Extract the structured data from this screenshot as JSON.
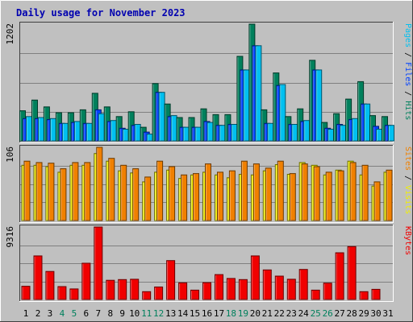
{
  "chart_data": {
    "type": "bar",
    "title": "Daily usage for November 2023",
    "categories": [
      "1",
      "2",
      "3",
      "4",
      "5",
      "6",
      "7",
      "8",
      "9",
      "10",
      "11",
      "12",
      "13",
      "14",
      "15",
      "16",
      "17",
      "18",
      "19",
      "20",
      "21",
      "22",
      "23",
      "24",
      "25",
      "26",
      "27",
      "28",
      "29",
      "30",
      "31"
    ],
    "weekend_days": [
      "4",
      "5",
      "11",
      "12",
      "18",
      "19",
      "25",
      "26"
    ],
    "panels": [
      {
        "id": "hits",
        "max_label": "1202",
        "ylim": [
          0,
          1202
        ],
        "axis_label_parts": [
          {
            "text": "Pages",
            "color": "#00c0f0"
          },
          {
            "text": " / ",
            "color": "#000000"
          },
          {
            "text": "Files",
            "color": "#0040ff"
          },
          {
            "text": " / ",
            "color": "#000000"
          },
          {
            "text": "Hits",
            "color": "#00805c"
          }
        ],
        "series": [
          {
            "name": "Hits",
            "color": "#00805c",
            "values": [
              310,
              420,
              350,
              290,
              290,
              320,
              490,
              350,
              250,
              300,
              140,
              590,
              380,
              240,
              240,
              330,
              270,
              270,
              870,
              1202,
              320,
              700,
              250,
              330,
              830,
              190,
              280,
              430,
              610,
              260,
              250
            ]
          },
          {
            "name": "Files",
            "color": "#0040ff",
            "values": [
              230,
              230,
              220,
              180,
              190,
              180,
              320,
              200,
              130,
              160,
              90,
              500,
              250,
              140,
              140,
              200,
              160,
              170,
              730,
              980,
              180,
              570,
              170,
              200,
              730,
              130,
              170,
              220,
              380,
              150,
              160
            ]
          },
          {
            "name": "Pages",
            "color": "#00c0f0",
            "values": [
              250,
              240,
              230,
              180,
              200,
              180,
              280,
              210,
              120,
              170,
              70,
              500,
              260,
              140,
              140,
              190,
              160,
              170,
              730,
              980,
              180,
              580,
              170,
              210,
              730,
              120,
              160,
              230,
              380,
              120,
              160
            ]
          }
        ]
      },
      {
        "id": "visits",
        "max_label": "106",
        "ylim": [
          0,
          106
        ],
        "axis_label_parts": [
          {
            "text": "Sites",
            "color": "#f08000"
          },
          {
            "text": " / ",
            "color": "#000000"
          },
          {
            "text": "Visits",
            "color": "#f0f000"
          }
        ],
        "series": [
          {
            "name": "Visits",
            "color": "#f0f000",
            "values": [
              80,
              80,
              78,
              70,
              80,
              80,
              97,
              86,
              72,
              69,
              56,
              70,
              73,
              61,
              66,
              70,
              66,
              62,
              67,
              66,
              72,
              81,
              67,
              84,
              80,
              66,
              73,
              86,
              66,
              50,
              70
            ]
          },
          {
            "name": "Sites",
            "color": "#f08000",
            "values": [
              86,
              84,
              83,
              75,
              84,
              84,
              106,
              90,
              80,
              75,
              63,
              86,
              78,
              66,
              68,
              82,
              70,
              72,
              86,
              82,
              76,
              86,
              68,
              82,
              78,
              70,
              72,
              84,
              80,
              56,
              73
            ]
          }
        ]
      },
      {
        "id": "kbytes",
        "max_label": "9316",
        "ylim": [
          0,
          9316
        ],
        "axis_label_parts": [
          {
            "text": "KBytes",
            "color": "#f00000"
          }
        ],
        "series": [
          {
            "name": "KBytes",
            "color": "#f00000",
            "values": [
              1700,
              5600,
              3600,
              1660,
              1360,
              4660,
              9316,
              2460,
              2560,
              2600,
              1000,
              1600,
              5000,
              2140,
              1200,
              2160,
              3200,
              2700,
              2560,
              5600,
              3800,
              3000,
              2600,
              3860,
              1200,
              2100,
              6000,
              6800,
              1000,
              1300,
              0
            ]
          }
        ]
      }
    ]
  }
}
